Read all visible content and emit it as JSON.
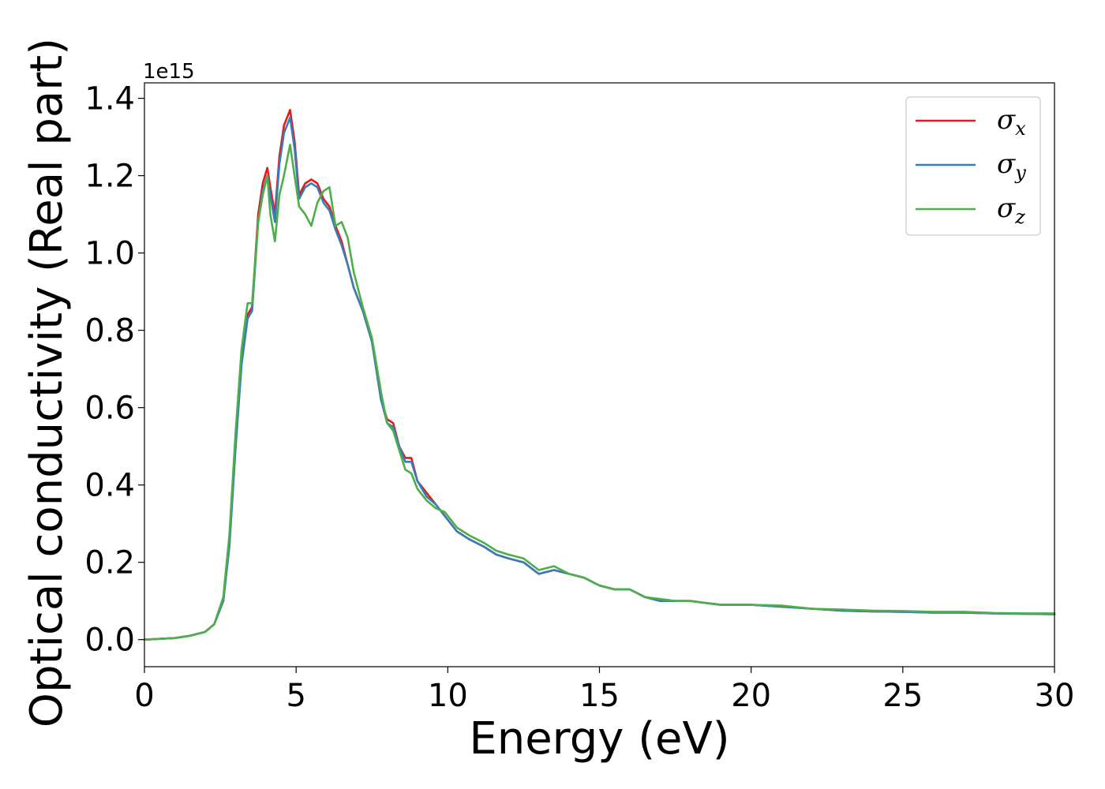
{
  "chart_data": {
    "type": "line",
    "title": "",
    "xlabel": "Energy (eV)",
    "ylabel": "Optical conductivity (Real part)",
    "y_offset_label": "1e15",
    "xlim": [
      0,
      30
    ],
    "ylim": [
      -0.07,
      1.44
    ],
    "x_ticks": [
      0,
      5,
      10,
      15,
      20,
      25,
      30
    ],
    "x_tick_labels": [
      "0",
      "5",
      "10",
      "15",
      "20",
      "25",
      "30"
    ],
    "y_ticks": [
      0.0,
      0.2,
      0.4,
      0.6,
      0.8,
      1.0,
      1.2,
      1.4
    ],
    "y_tick_labels": [
      "0.0",
      "0.2",
      "0.4",
      "0.6",
      "0.8",
      "1.0",
      "1.2",
      "1.4"
    ],
    "grid": false,
    "legend_position": "top-right",
    "series": [
      {
        "name": "σx",
        "legend_symbol": "σ",
        "legend_subscript": "x",
        "color": "#e41a1c",
        "x": [
          0,
          1,
          1.5,
          2,
          2.3,
          2.6,
          2.8,
          3.0,
          3.2,
          3.4,
          3.55,
          3.75,
          3.9,
          4.05,
          4.15,
          4.3,
          4.45,
          4.6,
          4.8,
          4.95,
          5.1,
          5.3,
          5.5,
          5.7,
          5.9,
          6.1,
          6.3,
          6.5,
          6.7,
          6.9,
          7.2,
          7.5,
          7.8,
          8.0,
          8.2,
          8.4,
          8.6,
          8.8,
          9.0,
          9.3,
          9.6,
          9.9,
          10.3,
          10.7,
          11.2,
          11.6,
          12.0,
          12.5,
          13.0,
          13.5,
          14.0,
          14.5,
          15.0,
          15.5,
          16.0,
          16.5,
          17.0,
          17.5,
          18.0,
          19.0,
          20.0,
          21.0,
          22.0,
          23.0,
          24.0,
          25.0,
          26.0,
          27.0,
          28.0,
          29.0,
          30.0
        ],
        "values": [
          0.0,
          0.004,
          0.01,
          0.02,
          0.04,
          0.1,
          0.25,
          0.5,
          0.72,
          0.84,
          0.86,
          1.1,
          1.18,
          1.22,
          1.17,
          1.1,
          1.25,
          1.33,
          1.37,
          1.29,
          1.15,
          1.18,
          1.19,
          1.18,
          1.14,
          1.12,
          1.07,
          1.03,
          0.97,
          0.91,
          0.85,
          0.77,
          0.62,
          0.57,
          0.56,
          0.5,
          0.47,
          0.47,
          0.41,
          0.38,
          0.35,
          0.32,
          0.28,
          0.26,
          0.24,
          0.22,
          0.21,
          0.2,
          0.17,
          0.18,
          0.17,
          0.16,
          0.14,
          0.13,
          0.13,
          0.11,
          0.1,
          0.1,
          0.1,
          0.09,
          0.09,
          0.085,
          0.08,
          0.075,
          0.073,
          0.072,
          0.07,
          0.07,
          0.068,
          0.067,
          0.066
        ]
      },
      {
        "name": "σy",
        "legend_symbol": "σ",
        "legend_subscript": "y",
        "color": "#377eb8",
        "x": [
          0,
          1,
          1.5,
          2,
          2.3,
          2.6,
          2.8,
          3.0,
          3.2,
          3.4,
          3.55,
          3.75,
          3.9,
          4.05,
          4.15,
          4.3,
          4.45,
          4.6,
          4.8,
          4.95,
          5.1,
          5.3,
          5.5,
          5.7,
          5.9,
          6.1,
          6.3,
          6.5,
          6.7,
          6.9,
          7.2,
          7.5,
          7.8,
          8.0,
          8.2,
          8.4,
          8.6,
          8.8,
          9.0,
          9.3,
          9.6,
          9.9,
          10.3,
          10.7,
          11.2,
          11.6,
          12.0,
          12.5,
          13.0,
          13.5,
          14.0,
          14.5,
          15.0,
          15.5,
          16.0,
          16.5,
          17.0,
          17.5,
          18.0,
          19.0,
          20.0,
          21.0,
          22.0,
          23.0,
          24.0,
          25.0,
          26.0,
          27.0,
          28.0,
          29.0,
          30.0
        ],
        "values": [
          0.0,
          0.004,
          0.01,
          0.02,
          0.04,
          0.1,
          0.24,
          0.49,
          0.71,
          0.83,
          0.85,
          1.08,
          1.16,
          1.2,
          1.15,
          1.08,
          1.23,
          1.31,
          1.35,
          1.27,
          1.14,
          1.17,
          1.18,
          1.17,
          1.13,
          1.11,
          1.06,
          1.02,
          0.97,
          0.91,
          0.85,
          0.77,
          0.62,
          0.56,
          0.55,
          0.5,
          0.46,
          0.46,
          0.41,
          0.37,
          0.35,
          0.32,
          0.28,
          0.26,
          0.24,
          0.22,
          0.21,
          0.2,
          0.17,
          0.18,
          0.17,
          0.16,
          0.14,
          0.13,
          0.13,
          0.11,
          0.1,
          0.1,
          0.1,
          0.09,
          0.09,
          0.085,
          0.08,
          0.075,
          0.073,
          0.072,
          0.07,
          0.07,
          0.068,
          0.067,
          0.066
        ]
      },
      {
        "name": "σz",
        "legend_symbol": "σ",
        "legend_subscript": "z",
        "color": "#4daf4a",
        "x": [
          0,
          1,
          1.5,
          2,
          2.3,
          2.6,
          2.8,
          3.0,
          3.2,
          3.4,
          3.55,
          3.75,
          3.9,
          4.05,
          4.15,
          4.3,
          4.45,
          4.6,
          4.8,
          4.95,
          5.1,
          5.3,
          5.5,
          5.7,
          5.9,
          6.1,
          6.3,
          6.5,
          6.7,
          6.9,
          7.2,
          7.5,
          7.8,
          8.0,
          8.2,
          8.4,
          8.6,
          8.8,
          9.0,
          9.3,
          9.6,
          9.9,
          10.3,
          10.7,
          11.2,
          11.6,
          12.0,
          12.5,
          13.0,
          13.5,
          14.0,
          14.5,
          15.0,
          15.5,
          16.0,
          16.5,
          17.0,
          17.5,
          18.0,
          19.0,
          20.0,
          21.0,
          22.0,
          23.0,
          24.0,
          25.0,
          26.0,
          27.0,
          28.0,
          29.0,
          30.0
        ],
        "values": [
          0.0,
          0.004,
          0.01,
          0.02,
          0.04,
          0.11,
          0.27,
          0.53,
          0.75,
          0.87,
          0.87,
          1.08,
          1.15,
          1.2,
          1.1,
          1.03,
          1.15,
          1.2,
          1.28,
          1.2,
          1.12,
          1.1,
          1.07,
          1.13,
          1.16,
          1.17,
          1.07,
          1.08,
          1.04,
          0.95,
          0.86,
          0.78,
          0.64,
          0.56,
          0.54,
          0.49,
          0.44,
          0.43,
          0.39,
          0.36,
          0.34,
          0.33,
          0.29,
          0.27,
          0.25,
          0.23,
          0.22,
          0.21,
          0.18,
          0.19,
          0.17,
          0.16,
          0.14,
          0.13,
          0.13,
          0.11,
          0.105,
          0.1,
          0.1,
          0.09,
          0.09,
          0.088,
          0.08,
          0.078,
          0.075,
          0.074,
          0.072,
          0.072,
          0.069,
          0.068,
          0.068
        ]
      }
    ]
  }
}
